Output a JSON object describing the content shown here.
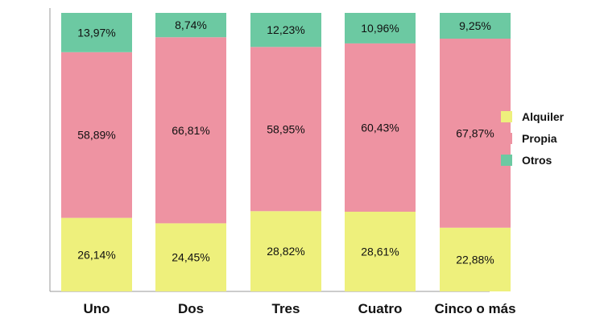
{
  "chart_data": {
    "type": "bar",
    "stacked": true,
    "categories": [
      "Uno",
      "Dos",
      "Tres",
      "Cuatro",
      "Cinco o más"
    ],
    "series": [
      {
        "name": "Alquiler",
        "color": "#eef07c",
        "values": [
          26.14,
          24.45,
          28.82,
          28.61,
          22.88
        ],
        "labels": [
          "26,14%",
          "24,45%",
          "28,82%",
          "28,61%",
          "22,88%"
        ]
      },
      {
        "name": "Propia",
        "color": "#ee93a2",
        "values": [
          58.89,
          66.81,
          58.95,
          60.43,
          67.87
        ],
        "labels": [
          "58,89%",
          "66,81%",
          "58,95%",
          "60,43%",
          "67,87%"
        ]
      },
      {
        "name": "Otros",
        "color": "#6cc9a2",
        "values": [
          13.97,
          8.74,
          12.23,
          10.96,
          9.25
        ],
        "labels": [
          "13,97%",
          "8,74%",
          "12,23%",
          "10,96%",
          "9,25%"
        ]
      }
    ],
    "ylim": [
      0,
      100
    ],
    "legend": "right",
    "grid": false,
    "axis_color": "#999999"
  }
}
